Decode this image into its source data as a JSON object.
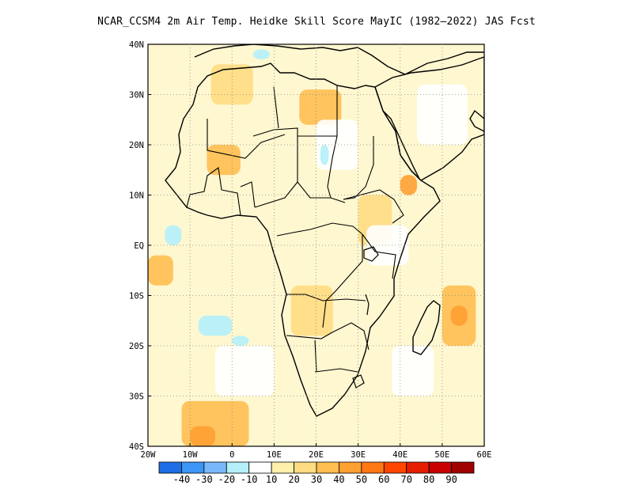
{
  "title": "NCAR_CCSM4 2m Air Temp. Heidke Skill Score MayIC (1982–2022) JAS Fcst",
  "map": {
    "lon_range": [
      -20,
      60
    ],
    "lat_range": [
      -40,
      40
    ],
    "lon_ticks": [
      {
        "value": -20,
        "label": "20W"
      },
      {
        "value": -10,
        "label": "10W"
      },
      {
        "value": 0,
        "label": "0"
      },
      {
        "value": 10,
        "label": "10E"
      },
      {
        "value": 20,
        "label": "20E"
      },
      {
        "value": 30,
        "label": "30E"
      },
      {
        "value": 40,
        "label": "40E"
      },
      {
        "value": 50,
        "label": "50E"
      },
      {
        "value": 60,
        "label": "60E"
      }
    ],
    "lat_ticks": [
      {
        "value": 40,
        "label": "40N"
      },
      {
        "value": 30,
        "label": "30N"
      },
      {
        "value": 20,
        "label": "20N"
      },
      {
        "value": 10,
        "label": "10N"
      },
      {
        "value": 0,
        "label": "EQ"
      },
      {
        "value": -10,
        "label": "10S"
      },
      {
        "value": -20,
        "label": "20S"
      },
      {
        "value": -30,
        "label": "30S"
      },
      {
        "value": -40,
        "label": "40S"
      }
    ],
    "gridlines": "dotted",
    "skill_regions": [
      {
        "level": 10,
        "lon": [
          -20,
          60
        ],
        "lat": [
          -40,
          40
        ]
      },
      {
        "level": 20,
        "lon": [
          -5,
          5
        ],
        "lat": [
          28,
          36
        ]
      },
      {
        "level": 20,
        "lon": [
          14,
          24
        ],
        "lat": [
          -18,
          -8
        ]
      },
      {
        "level": 20,
        "lon": [
          30,
          38
        ],
        "lat": [
          0,
          10
        ]
      },
      {
        "level": 30,
        "lon": [
          16,
          26
        ],
        "lat": [
          24,
          31
        ]
      },
      {
        "level": 30,
        "lon": [
          -6,
          2
        ],
        "lat": [
          14,
          20
        ]
      },
      {
        "level": 30,
        "lon": [
          -20,
          -14
        ],
        "lat": [
          -8,
          -2
        ]
      },
      {
        "level": 30,
        "lon": [
          50,
          58
        ],
        "lat": [
          -20,
          -8
        ]
      },
      {
        "level": 30,
        "lon": [
          -12,
          4
        ],
        "lat": [
          -40,
          -31
        ]
      },
      {
        "level": 40,
        "lon": [
          40,
          44
        ],
        "lat": [
          10,
          14
        ]
      },
      {
        "level": 40,
        "lon": [
          -10,
          -4
        ],
        "lat": [
          -40,
          -36
        ]
      },
      {
        "level": 40,
        "lon": [
          52,
          56
        ],
        "lat": [
          -16,
          -12
        ]
      },
      {
        "level": 0,
        "lon": [
          20,
          30
        ],
        "lat": [
          15,
          25
        ]
      },
      {
        "level": 0,
        "lon": [
          44,
          56
        ],
        "lat": [
          20,
          32
        ]
      },
      {
        "level": 0,
        "lon": [
          32,
          42
        ],
        "lat": [
          -4,
          4
        ]
      },
      {
        "level": 0,
        "lon": [
          -4,
          10
        ],
        "lat": [
          -30,
          -20
        ]
      },
      {
        "level": 0,
        "lon": [
          38,
          48
        ],
        "lat": [
          -30,
          -20
        ]
      },
      {
        "level": -10,
        "lon": [
          -16,
          -12
        ],
        "lat": [
          0,
          4
        ]
      },
      {
        "level": -10,
        "lon": [
          -8,
          0
        ],
        "lat": [
          -18,
          -14
        ]
      },
      {
        "level": -10,
        "lon": [
          0,
          4
        ],
        "lat": [
          -20,
          -18
        ]
      },
      {
        "level": -10,
        "lon": [
          21,
          23
        ],
        "lat": [
          16,
          20
        ]
      },
      {
        "level": -10,
        "lon": [
          5,
          9
        ],
        "lat": [
          37,
          39
        ]
      }
    ]
  },
  "colorbar": {
    "levels": [
      "-40",
      "-30",
      "-20",
      "-10",
      "10",
      "20",
      "30",
      "40",
      "50",
      "60",
      "70",
      "80",
      "90"
    ],
    "colors": [
      "#1e6ee6",
      "#3c96f5",
      "#78b9fa",
      "#b4f0fa",
      "#ffffff",
      "#fff0aa",
      "#ffdc82",
      "#ffbe50",
      "#ffa032",
      "#ff7814",
      "#ff4600",
      "#e61e00",
      "#c80000",
      "#a00000"
    ]
  }
}
